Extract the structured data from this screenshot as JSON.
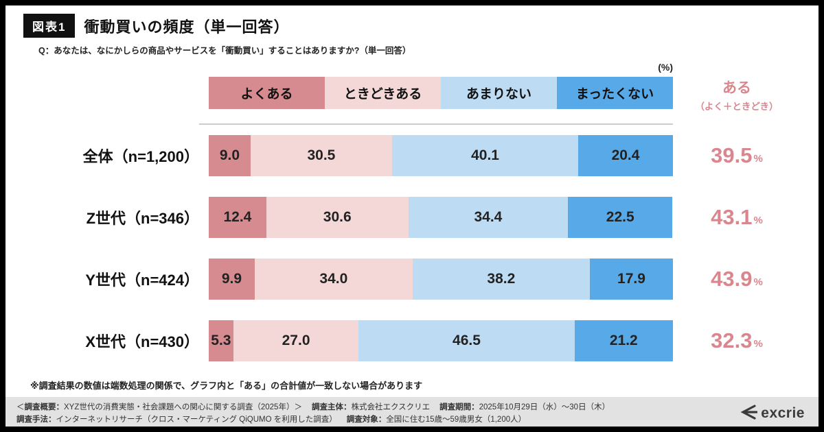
{
  "figure": {
    "tag": "図表1",
    "title": "衝動買いの頻度（単一回答）",
    "question": "Q：あなたは、なにかしらの商品やサービスを「衝動買い」することはありますか?（単一回答）",
    "unit": "(%)",
    "aru_header_line1": "ある",
    "aru_header_line2": "（よく＋ときどき）",
    "aru_color": "#d9868e",
    "percent_sign": "%",
    "footnote": "※調査結果の数値は端数処理の関係で、グラフ内と「ある」の合計値が一致しない場合があります"
  },
  "chart_data": {
    "type": "bar",
    "stacked": true,
    "orientation": "horizontal",
    "title": "衝動買いの頻度（単一回答）",
    "xlim": [
      0,
      100
    ],
    "legend_position": "top",
    "categories": [
      "全体（n=1,200）",
      "Z世代（n=346）",
      "Y世代（n=424）",
      "X世代（n=430）"
    ],
    "series": [
      {
        "name": "よくある",
        "color": "#d58b90",
        "values": [
          9.0,
          12.4,
          9.9,
          5.3
        ],
        "display": [
          "9.0",
          "12.4",
          "9.9",
          "5.3"
        ]
      },
      {
        "name": "ときどきある",
        "color": "#f4d8d8",
        "values": [
          30.5,
          30.6,
          34.0,
          27.0
        ],
        "display": [
          "30.5",
          "30.6",
          "34.0",
          "27.0"
        ]
      },
      {
        "name": "あまりない",
        "color": "#bddcf4",
        "values": [
          40.1,
          34.4,
          38.2,
          46.5
        ],
        "display": [
          "40.1",
          "34.4",
          "38.2",
          "46.5"
        ]
      },
      {
        "name": "まったくない",
        "color": "#57a9e8",
        "values": [
          20.4,
          22.5,
          17.9,
          21.2
        ],
        "display": [
          "20.4",
          "22.5",
          "17.9",
          "21.2"
        ]
      }
    ],
    "aru_totals": [
      "39.5",
      "43.1",
      "43.9",
      "32.3"
    ]
  },
  "footer": {
    "line1_pre": "＜",
    "line1_label0": "調査概要：",
    "line1_val0": "XYZ世代の消費実態・社会課題への関心に関する調査（2025年）＞",
    "line1_label1": "調査主体：",
    "line1_val1": "株式会社エクスクリエ",
    "line1_label2": "調査期間：",
    "line1_val2": "2025年10月29日（水）〜30日（木）",
    "line2_label1": "調査手法：",
    "line2_val1": "インターネットリサーチ（クロス・マーケティング QiQUMO を利用した調査）",
    "line2_label2": "調査対象：",
    "line2_val2": "全国に住む15歳〜59歳男女（1,200人）",
    "logo": "excrie"
  }
}
